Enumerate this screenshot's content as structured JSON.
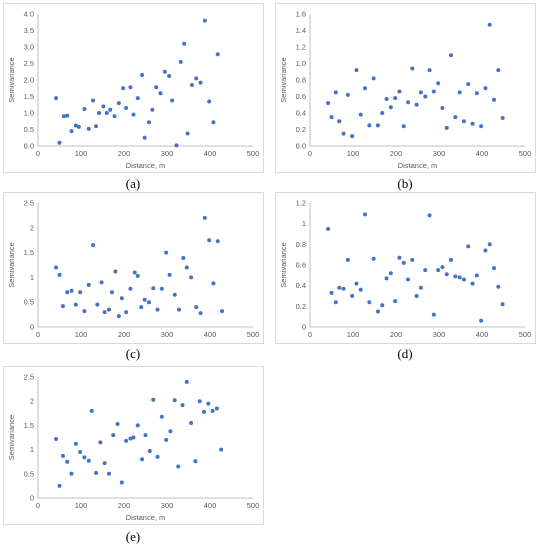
{
  "chart_data": [
    {
      "id": "a",
      "panel_label": "(a)",
      "type": "scatter",
      "xlabel": "Distance, m",
      "ylabel": "Semivariance",
      "xlim": [
        0,
        500
      ],
      "ylim": [
        0,
        4
      ],
      "xticks": [
        "0",
        "100",
        "200",
        "300",
        "400",
        "500"
      ],
      "yticks": [
        "0.0",
        "0.5",
        "1.0",
        "1.5",
        "2.0",
        "2.5",
        "3.0",
        "3.5",
        "4.0"
      ],
      "points": [
        [
          42,
          1.45
        ],
        [
          50,
          0.1
        ],
        [
          60,
          0.9
        ],
        [
          68,
          0.92
        ],
        [
          78,
          0.45
        ],
        [
          88,
          0.62
        ],
        [
          95,
          0.58
        ],
        [
          108,
          1.12
        ],
        [
          118,
          0.52
        ],
        [
          128,
          1.38
        ],
        [
          135,
          0.6
        ],
        [
          142,
          1.0
        ],
        [
          152,
          1.2
        ],
        [
          160,
          1.0
        ],
        [
          168,
          1.1
        ],
        [
          178,
          0.9
        ],
        [
          188,
          1.3
        ],
        [
          198,
          1.75
        ],
        [
          205,
          1.15
        ],
        [
          215,
          1.78
        ],
        [
          222,
          0.95
        ],
        [
          232,
          1.45
        ],
        [
          242,
          2.15
        ],
        [
          248,
          0.25
        ],
        [
          258,
          0.72
        ],
        [
          266,
          1.1
        ],
        [
          275,
          1.78
        ],
        [
          285,
          1.6
        ],
        [
          295,
          2.25
        ],
        [
          305,
          2.12
        ],
        [
          312,
          1.38
        ],
        [
          322,
          0.02
        ],
        [
          332,
          2.55
        ],
        [
          340,
          3.1
        ],
        [
          348,
          0.38
        ],
        [
          358,
          1.85
        ],
        [
          368,
          2.05
        ],
        [
          378,
          1.92
        ],
        [
          388,
          3.8
        ],
        [
          398,
          1.35
        ],
        [
          408,
          0.72
        ],
        [
          418,
          2.78
        ]
      ]
    },
    {
      "id": "b",
      "panel_label": "(b)",
      "type": "scatter",
      "xlabel": "Distance, m",
      "ylabel": "Semivariance",
      "xlim": [
        0,
        500
      ],
      "ylim": [
        0,
        1.6
      ],
      "xticks": [
        "0",
        "100",
        "200",
        "300",
        "400",
        "500"
      ],
      "yticks": [
        "0.0",
        "0.2",
        "0.4",
        "0.6",
        "0.8",
        "1.0",
        "1.2",
        "1.4",
        "1.6"
      ],
      "points": [
        [
          42,
          0.52
        ],
        [
          50,
          0.35
        ],
        [
          60,
          0.65
        ],
        [
          68,
          0.3
        ],
        [
          78,
          0.15
        ],
        [
          88,
          0.62
        ],
        [
          98,
          0.12
        ],
        [
          108,
          0.92
        ],
        [
          118,
          0.38
        ],
        [
          128,
          0.7
        ],
        [
          138,
          0.25
        ],
        [
          148,
          0.82
        ],
        [
          158,
          0.25
        ],
        [
          168,
          0.4
        ],
        [
          178,
          0.57
        ],
        [
          188,
          0.47
        ],
        [
          198,
          0.58
        ],
        [
          208,
          0.66
        ],
        [
          218,
          0.24
        ],
        [
          228,
          0.53
        ],
        [
          238,
          0.94
        ],
        [
          248,
          0.5
        ],
        [
          258,
          0.65
        ],
        [
          268,
          0.6
        ],
        [
          278,
          0.92
        ],
        [
          288,
          0.66
        ],
        [
          298,
          0.76
        ],
        [
          308,
          0.46
        ],
        [
          318,
          0.22
        ],
        [
          328,
          1.1
        ],
        [
          338,
          0.35
        ],
        [
          348,
          0.65
        ],
        [
          358,
          0.3
        ],
        [
          368,
          0.75
        ],
        [
          378,
          0.27
        ],
        [
          388,
          0.64
        ],
        [
          398,
          0.24
        ],
        [
          408,
          0.7
        ],
        [
          418,
          1.47
        ],
        [
          428,
          0.56
        ],
        [
          438,
          0.92
        ],
        [
          448,
          0.34
        ]
      ]
    },
    {
      "id": "c",
      "panel_label": "(c)",
      "type": "scatter",
      "xlabel": "",
      "ylabel": "Semivariance",
      "xlim": [
        0,
        500
      ],
      "ylim": [
        0,
        2.5
      ],
      "xticks": [
        "0",
        "100",
        "200",
        "300",
        "400",
        "500"
      ],
      "yticks": [
        "0",
        "0.5",
        "1",
        "1.5",
        "2",
        "2.5"
      ],
      "points": [
        [
          42,
          1.2
        ],
        [
          50,
          1.05
        ],
        [
          58,
          0.42
        ],
        [
          68,
          0.7
        ],
        [
          78,
          0.73
        ],
        [
          88,
          0.45
        ],
        [
          98,
          0.7
        ],
        [
          108,
          0.32
        ],
        [
          118,
          0.85
        ],
        [
          128,
          1.65
        ],
        [
          138,
          0.45
        ],
        [
          148,
          0.9
        ],
        [
          155,
          0.3
        ],
        [
          165,
          0.35
        ],
        [
          172,
          0.7
        ],
        [
          180,
          1.12
        ],
        [
          188,
          0.22
        ],
        [
          195,
          0.58
        ],
        [
          205,
          0.3
        ],
        [
          215,
          0.77
        ],
        [
          225,
          1.1
        ],
        [
          232,
          1.03
        ],
        [
          240,
          0.4
        ],
        [
          248,
          0.55
        ],
        [
          258,
          0.5
        ],
        [
          268,
          0.78
        ],
        [
          278,
          0.35
        ],
        [
          288,
          0.77
        ],
        [
          298,
          1.5
        ],
        [
          306,
          1.05
        ],
        [
          318,
          0.65
        ],
        [
          328,
          0.35
        ],
        [
          338,
          1.39
        ],
        [
          346,
          1.2
        ],
        [
          356,
          1.0
        ],
        [
          368,
          0.4
        ],
        [
          378,
          0.28
        ],
        [
          388,
          2.2
        ],
        [
          398,
          1.75
        ],
        [
          408,
          0.88
        ],
        [
          418,
          1.73
        ],
        [
          428,
          0.32
        ]
      ]
    },
    {
      "id": "d",
      "panel_label": "(d)",
      "type": "scatter",
      "xlabel": "",
      "ylabel": "Semivariance",
      "xlim": [
        0,
        500
      ],
      "ylim": [
        0,
        1.2
      ],
      "xticks": [
        "0",
        "100",
        "200",
        "300",
        "400",
        "500"
      ],
      "yticks": [
        "0",
        "0.2",
        "0.4",
        "0.6",
        "0.8",
        "1",
        "1.2"
      ],
      "points": [
        [
          42,
          0.95
        ],
        [
          50,
          0.33
        ],
        [
          60,
          0.24
        ],
        [
          68,
          0.38
        ],
        [
          78,
          0.37
        ],
        [
          88,
          0.65
        ],
        [
          98,
          0.3
        ],
        [
          108,
          0.42
        ],
        [
          118,
          0.36
        ],
        [
          128,
          1.09
        ],
        [
          138,
          0.24
        ],
        [
          148,
          0.66
        ],
        [
          158,
          0.15
        ],
        [
          168,
          0.21
        ],
        [
          178,
          0.47
        ],
        [
          188,
          0.52
        ],
        [
          198,
          0.25
        ],
        [
          208,
          0.67
        ],
        [
          218,
          0.62
        ],
        [
          228,
          0.46
        ],
        [
          238,
          0.65
        ],
        [
          248,
          0.3
        ],
        [
          258,
          0.38
        ],
        [
          268,
          0.55
        ],
        [
          278,
          1.08
        ],
        [
          288,
          0.12
        ],
        [
          298,
          0.55
        ],
        [
          308,
          0.58
        ],
        [
          318,
          0.51
        ],
        [
          328,
          0.65
        ],
        [
          338,
          0.49
        ],
        [
          348,
          0.48
        ],
        [
          358,
          0.46
        ],
        [
          368,
          0.78
        ],
        [
          378,
          0.42
        ],
        [
          388,
          0.5
        ],
        [
          398,
          0.06
        ],
        [
          408,
          0.74
        ],
        [
          418,
          0.8
        ],
        [
          428,
          0.57
        ],
        [
          438,
          0.39
        ],
        [
          448,
          0.22
        ]
      ]
    },
    {
      "id": "e",
      "panel_label": "(e)",
      "type": "scatter",
      "xlabel": "Distance, m",
      "ylabel": "Semivariance",
      "xlim": [
        0,
        500
      ],
      "ylim": [
        0,
        2.5
      ],
      "xticks": [
        "0",
        "100",
        "200",
        "300",
        "400",
        "500"
      ],
      "yticks": [
        "0",
        "0.5",
        "1",
        "1.5",
        "2",
        "2.5"
      ],
      "points": [
        [
          42,
          1.22
        ],
        [
          50,
          0.25
        ],
        [
          58,
          0.87
        ],
        [
          68,
          0.75
        ],
        [
          78,
          0.5
        ],
        [
          88,
          1.12
        ],
        [
          98,
          0.95
        ],
        [
          108,
          0.84
        ],
        [
          118,
          0.77
        ],
        [
          125,
          1.8
        ],
        [
          135,
          0.52
        ],
        [
          145,
          1.15
        ],
        [
          155,
          0.72
        ],
        [
          165,
          0.5
        ],
        [
          175,
          1.3
        ],
        [
          185,
          1.53
        ],
        [
          195,
          0.32
        ],
        [
          205,
          1.18
        ],
        [
          215,
          1.23
        ],
        [
          222,
          1.25
        ],
        [
          232,
          1.5
        ],
        [
          242,
          0.8
        ],
        [
          250,
          1.3
        ],
        [
          260,
          0.97
        ],
        [
          268,
          2.03
        ],
        [
          278,
          0.85
        ],
        [
          288,
          1.68
        ],
        [
          298,
          1.2
        ],
        [
          308,
          1.38
        ],
        [
          318,
          2.02
        ],
        [
          326,
          0.65
        ],
        [
          336,
          1.92
        ],
        [
          346,
          2.4
        ],
        [
          356,
          1.55
        ],
        [
          366,
          0.76
        ],
        [
          376,
          2.0
        ],
        [
          386,
          1.78
        ],
        [
          396,
          1.95
        ],
        [
          406,
          1.8
        ],
        [
          416,
          1.85
        ],
        [
          426,
          1.0
        ]
      ]
    }
  ]
}
